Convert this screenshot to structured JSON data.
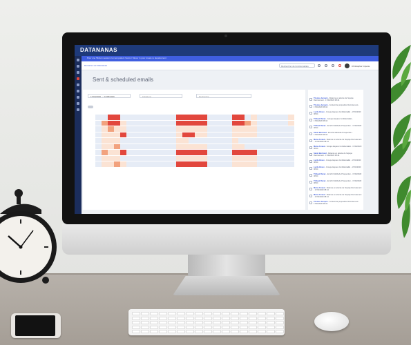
{
  "brand": "DATANANAS",
  "banner": "Pour une TErium session run test patient Versio / Mover in pour create re departement",
  "nav": {
    "link": "Démarrer sur Datananas",
    "search_placeholder": "Rechercher de fonctionnalités",
    "user_name": "Christopher Imperie"
  },
  "page": {
    "title": "Sent & scheduled emails"
  },
  "filters": {
    "date_range": "17/04/2020  →  01/05/2020",
    "filter_1": "Filtrations",
    "filter_2": "Recherche"
  },
  "colors": {
    "topbar": "#1e3a7a",
    "banner": "#3f5ee0",
    "heat_low": "#fbe3d4",
    "heat_mid": "#f2a27e",
    "heat_high": "#e2473d",
    "heat_empty": "#e6ecf6"
  },
  "sidebar_icons": [
    "logo-icon",
    "mail-icon",
    "calendar-icon",
    "alert-icon",
    "send-icon",
    "chart-icon",
    "list-icon",
    "download-icon",
    "settings-icon"
  ],
  "heatmap": {
    "rows": [
      [
        0,
        0,
        3,
        3,
        0,
        0,
        0,
        0,
        0,
        0,
        0,
        0,
        0,
        3,
        3,
        3,
        3,
        3,
        0,
        0,
        0,
        0,
        3,
        3,
        0,
        1,
        0,
        0,
        0,
        0,
        0,
        1
      ],
      [
        0,
        2,
        3,
        3,
        1,
        0,
        0,
        0,
        0,
        0,
        0,
        0,
        0,
        3,
        3,
        3,
        3,
        3,
        0,
        0,
        0,
        0,
        3,
        3,
        2,
        1,
        0,
        0,
        0,
        0,
        0,
        1
      ],
      [
        0,
        1,
        2,
        1,
        1,
        0,
        0,
        0,
        0,
        0,
        0,
        0,
        0,
        1,
        1,
        1,
        1,
        1,
        0,
        0,
        0,
        0,
        1,
        1,
        1,
        1,
        0,
        0,
        0,
        0,
        0,
        0
      ],
      [
        0,
        1,
        1,
        1,
        3,
        0,
        0,
        0,
        0,
        0,
        0,
        0,
        0,
        1,
        3,
        3,
        1,
        1,
        0,
        0,
        0,
        0,
        1,
        1,
        1,
        1,
        0,
        0,
        0,
        0,
        0,
        0
      ],
      [
        0,
        1,
        1,
        1,
        0,
        0,
        0,
        0,
        0,
        0,
        0,
        0,
        0,
        1,
        1,
        0,
        0,
        0,
        0,
        0,
        0,
        0,
        1,
        0,
        0,
        0,
        0,
        0,
        0,
        0,
        0,
        0
      ],
      [
        0,
        1,
        1,
        2,
        0,
        0,
        0,
        0,
        0,
        0,
        0,
        0,
        0,
        1,
        1,
        1,
        1,
        1,
        0,
        0,
        0,
        0,
        1,
        1,
        0,
        0,
        0,
        0,
        0,
        0,
        0,
        0
      ],
      [
        0,
        2,
        1,
        1,
        3,
        0,
        0,
        0,
        0,
        0,
        0,
        0,
        0,
        3,
        3,
        3,
        3,
        3,
        0,
        0,
        0,
        0,
        3,
        3,
        3,
        3,
        0,
        0,
        0,
        0,
        0,
        0
      ],
      [
        0,
        1,
        1,
        1,
        0,
        0,
        0,
        0,
        0,
        0,
        0,
        0,
        0,
        1,
        1,
        1,
        1,
        1,
        0,
        0,
        0,
        0,
        1,
        1,
        1,
        1,
        0,
        0,
        0,
        0,
        0,
        0
      ],
      [
        0,
        1,
        1,
        2,
        1,
        0,
        0,
        0,
        0,
        0,
        0,
        0,
        0,
        3,
        3,
        3,
        3,
        3,
        0,
        0,
        0,
        0,
        1,
        1,
        1,
        1,
        0,
        0,
        0,
        0,
        0,
        0
      ]
    ]
  },
  "emails": [
    {
      "title": "Thomas Jacquin",
      "text": "Relance en attente de l'équipe Recrutement - 17/04/2020 08:44"
    },
    {
      "title": "Thomas Jacquin",
      "text": "Contact de proposition Recrutement - 17/04/2020 08:44"
    },
    {
      "title": "Lucile Broux",
      "text": "Groupe Espace Confidentialité - 17/04/2020 08:44"
    },
    {
      "title": "Thibaut Rézac",
      "text": "Groupe Espace Confidentialité - 17/04/2020 08:44"
    },
    {
      "title": "Thibaut Rézac",
      "text": "Enrichir Méthode Prospection - 17/04/2020 08:44"
    },
    {
      "title": "Sarah Bertrand",
      "text": "Enrichir Méthode Prospection - 17/04/2020 08:44"
    },
    {
      "title": "Marie Arnaud",
      "text": "Relance en attente de l'équipe Recrutement - 17/04/2020 08:44"
    },
    {
      "title": "Marie Arnaud",
      "text": "Groupe Espace Confidentialité - 17/04/2020 08:44"
    },
    {
      "title": "Sarah Bertrand",
      "text": "Relance en attente de l'équipe Recrutement - 17/04/2020 08:44"
    },
    {
      "title": "Lucile Broux",
      "text": "Groupe Espace Confidentialité - 17/04/2020 08:44"
    },
    {
      "title": "Lucile Broux",
      "text": "Groupe Espace Confidentialité - 17/04/2020 08:44"
    },
    {
      "title": "Thibaut Rézac",
      "text": "Enrichir Méthode Prospection - 17/04/2020 08:44"
    },
    {
      "title": "Thibaut Rézac",
      "text": "Enrichir Méthode Prospection - 17/04/2020 08:44"
    },
    {
      "title": "Marie Arnaud",
      "text": "Relance en attente de l'équipe Recrutement - 17/04/2020 08:44"
    },
    {
      "title": "Marie Arnaud",
      "text": "Relance en attente de l'équipe Recrutement - 17/04/2020 08:44"
    },
    {
      "title": "Thomas Jacquin",
      "text": "Contact de proposition Recrutement - 17/04/2020 08:44"
    }
  ]
}
